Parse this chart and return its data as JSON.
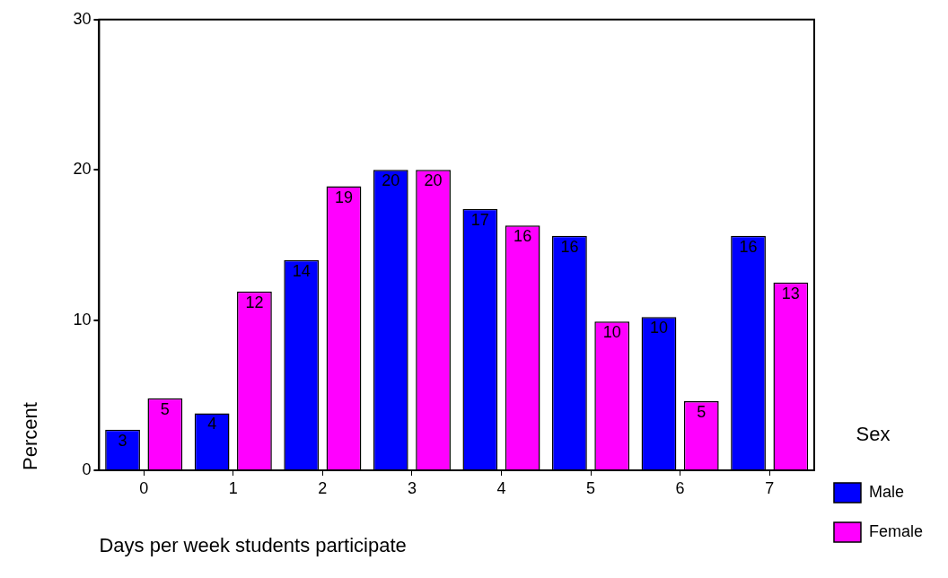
{
  "chart_data": {
    "type": "bar",
    "xlabel": "Days per week students participate",
    "ylabel": "Percent",
    "legend_title": "Sex",
    "categories": [
      "0",
      "1",
      "2",
      "3",
      "4",
      "5",
      "6",
      "7"
    ],
    "series": [
      {
        "name": "Male",
        "color": "#0000ff",
        "values": [
          2.7,
          3.8,
          14.0,
          20.0,
          17.4,
          15.6,
          10.2,
          15.6
        ],
        "value_labels": [
          "3",
          "4",
          "14",
          "20",
          "17",
          "16",
          "10",
          "16"
        ]
      },
      {
        "name": "Female",
        "color": "#ff00ff",
        "values": [
          4.8,
          11.9,
          18.9,
          20.0,
          16.3,
          9.9,
          4.6,
          12.5
        ],
        "value_labels": [
          "5",
          "12",
          "19",
          "20",
          "16",
          "10",
          "5",
          "13"
        ]
      }
    ],
    "ylim": [
      0,
      30
    ],
    "yticks": [
      0,
      10,
      20,
      30
    ],
    "grid": false,
    "legend": "bottom right"
  }
}
